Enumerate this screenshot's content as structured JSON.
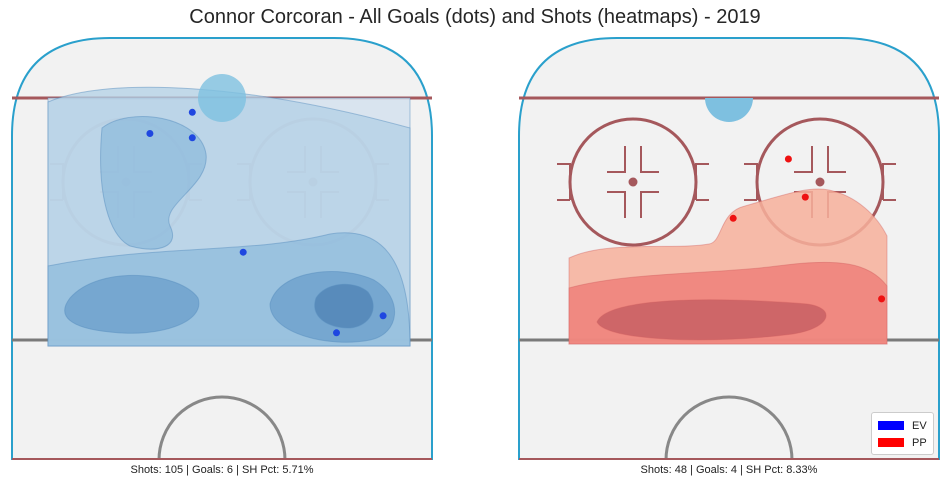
{
  "title": "Connor Corcoran - All Goals (dots) and Shots (heatmaps) - 2019",
  "chart_data": [
    {
      "type": "heatmap",
      "panel": "left",
      "strength": "EV",
      "description_of_marks": "goal dots over shot density contours",
      "colors": {
        "goal": "#1f47e0",
        "density": [
          "#d5e2ef",
          "#b2d0e6",
          "#8fbbdc",
          "#6a9ecb",
          "#4f81b4"
        ]
      },
      "goals": [
        {
          "x": 0.43,
          "y": 0.18
        },
        {
          "x": 0.33,
          "y": 0.23
        },
        {
          "x": 0.43,
          "y": 0.24
        },
        {
          "x": 0.55,
          "y": 0.51
        },
        {
          "x": 0.88,
          "y": 0.66
        },
        {
          "x": 0.77,
          "y": 0.7
        }
      ],
      "stats": {
        "caption": "Shots: 105 | Goals: 6 | SH Pct: 5.71%",
        "shots": 105,
        "goals": 6,
        "sh_pct": 5.71
      }
    },
    {
      "type": "heatmap",
      "panel": "right",
      "strength": "PP",
      "description_of_marks": "goal dots over shot density contours",
      "colors": {
        "goal": "#ee1111",
        "density": [
          "#f7b09b",
          "#ef807a",
          "#c86064"
        ]
      },
      "goals": [
        {
          "x": 0.64,
          "y": 0.29
        },
        {
          "x": 0.68,
          "y": 0.38
        },
        {
          "x": 0.51,
          "y": 0.43
        },
        {
          "x": 0.86,
          "y": 0.62
        }
      ],
      "stats": {
        "caption": "Shots: 48 | Goals: 4 | SH Pct: 8.33%",
        "shots": 48,
        "goals": 4,
        "sh_pct": 8.33
      }
    }
  ],
  "legend": {
    "placement": "bottom-right",
    "entries": [
      {
        "label": "EV",
        "color": "#0000ff"
      },
      {
        "label": "PP",
        "color": "#ff0000"
      }
    ]
  },
  "rink_colors": {
    "ice": "#f2f2f2",
    "boards": "#2aa0cc",
    "goal_line": "#a5585c",
    "blue_line": "#7a7a7a",
    "faceoff": "#a5585c",
    "crease": "#7ec0e0",
    "center_circle": "#888888"
  }
}
